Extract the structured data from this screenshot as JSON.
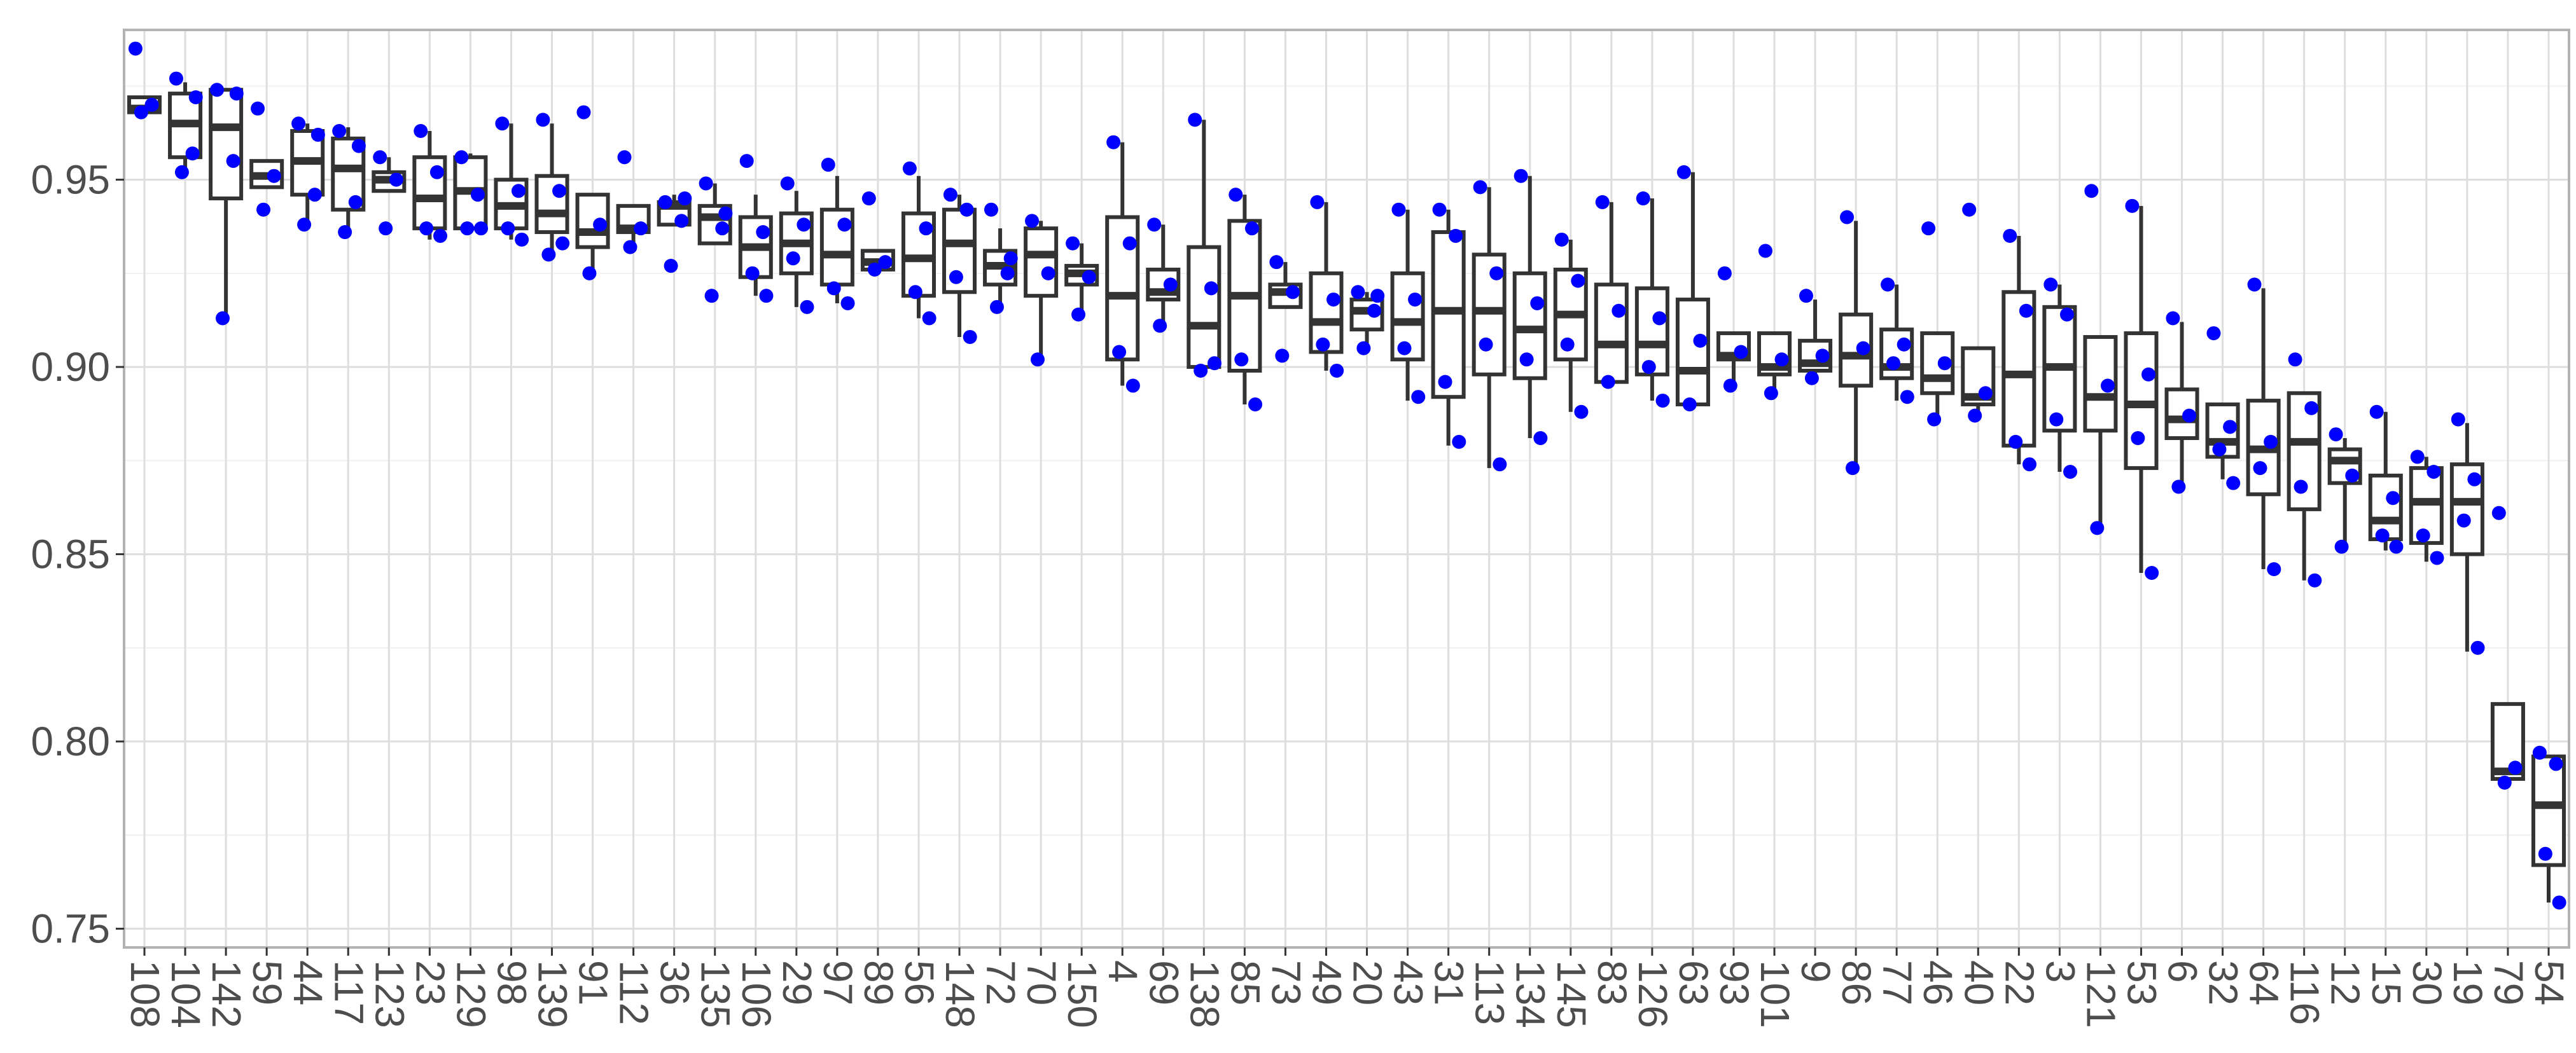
{
  "chart_data": {
    "type": "box",
    "title": "",
    "xlabel": "",
    "ylabel": "",
    "ylim": [
      0.745,
      0.99
    ],
    "y_ticks": [
      0.75,
      0.8,
      0.85,
      0.9,
      0.95
    ],
    "y_tick_labels": [
      "0.75",
      "0.80",
      "0.85",
      "0.90",
      "0.95"
    ],
    "grid": true,
    "box_color": "#333333",
    "point_color": "#0000ff",
    "categories": [
      "108",
      "104",
      "142",
      "59",
      "44",
      "117",
      "123",
      "23",
      "129",
      "98",
      "139",
      "91",
      "112",
      "36",
      "135",
      "106",
      "29",
      "97",
      "89",
      "56",
      "148",
      "72",
      "70",
      "150",
      "4",
      "69",
      "138",
      "85",
      "73",
      "49",
      "20",
      "43",
      "31",
      "113",
      "134",
      "145",
      "83",
      "126",
      "63",
      "93",
      "101",
      "9",
      "86",
      "77",
      "46",
      "40",
      "22",
      "3",
      "121",
      "53",
      "6",
      "32",
      "64",
      "116",
      "12",
      "15",
      "30",
      "19",
      "79",
      "54"
    ],
    "boxes": [
      {
        "q1": 0.968,
        "median": 0.969,
        "q3": 0.972,
        "lo": 0.968,
        "hi": 0.972,
        "points": [
          0.985,
          0.97,
          0.968
        ]
      },
      {
        "q1": 0.956,
        "median": 0.965,
        "q3": 0.973,
        "lo": 0.952,
        "hi": 0.976,
        "points": [
          0.977,
          0.957,
          0.952,
          0.972
        ]
      },
      {
        "q1": 0.945,
        "median": 0.964,
        "q3": 0.974,
        "lo": 0.913,
        "hi": 0.974,
        "points": [
          0.974,
          0.955,
          0.913,
          0.973
        ]
      },
      {
        "q1": 0.948,
        "median": 0.951,
        "q3": 0.955,
        "lo": 0.948,
        "hi": 0.955,
        "points": [
          0.969,
          0.951,
          0.942
        ]
      },
      {
        "q1": 0.946,
        "median": 0.955,
        "q3": 0.963,
        "lo": 0.938,
        "hi": 0.965,
        "points": [
          0.965,
          0.946,
          0.938,
          0.962
        ]
      },
      {
        "q1": 0.942,
        "median": 0.953,
        "q3": 0.961,
        "lo": 0.936,
        "hi": 0.964,
        "points": [
          0.963,
          0.944,
          0.936,
          0.959
        ]
      },
      {
        "q1": 0.947,
        "median": 0.95,
        "q3": 0.952,
        "lo": 0.947,
        "hi": 0.956,
        "points": [
          0.956,
          0.95,
          0.937
        ]
      },
      {
        "q1": 0.937,
        "median": 0.945,
        "q3": 0.956,
        "lo": 0.934,
        "hi": 0.963,
        "points": [
          0.963,
          0.952,
          0.937,
          0.935
        ]
      },
      {
        "q1": 0.937,
        "median": 0.947,
        "q3": 0.956,
        "lo": 0.937,
        "hi": 0.957,
        "points": [
          0.956,
          0.946,
          0.937,
          0.937
        ]
      },
      {
        "q1": 0.937,
        "median": 0.943,
        "q3": 0.95,
        "lo": 0.934,
        "hi": 0.965,
        "points": [
          0.965,
          0.947,
          0.937,
          0.934
        ]
      },
      {
        "q1": 0.936,
        "median": 0.941,
        "q3": 0.951,
        "lo": 0.93,
        "hi": 0.965,
        "points": [
          0.966,
          0.947,
          0.93,
          0.933
        ]
      },
      {
        "q1": 0.932,
        "median": 0.936,
        "q3": 0.946,
        "lo": 0.925,
        "hi": 0.946,
        "points": [
          0.968,
          0.938,
          0.925
        ]
      },
      {
        "q1": 0.936,
        "median": 0.937,
        "q3": 0.943,
        "lo": 0.932,
        "hi": 0.943,
        "points": [
          0.956,
          0.937,
          0.932
        ]
      },
      {
        "q1": 0.938,
        "median": 0.943,
        "q3": 0.944,
        "lo": 0.938,
        "hi": 0.946,
        "points": [
          0.944,
          0.939,
          0.927,
          0.945
        ]
      },
      {
        "q1": 0.933,
        "median": 0.94,
        "q3": 0.943,
        "lo": 0.933,
        "hi": 0.949,
        "points": [
          0.949,
          0.937,
          0.919,
          0.941
        ]
      },
      {
        "q1": 0.924,
        "median": 0.932,
        "q3": 0.94,
        "lo": 0.919,
        "hi": 0.946,
        "points": [
          0.955,
          0.936,
          0.925,
          0.919
        ]
      },
      {
        "q1": 0.925,
        "median": 0.933,
        "q3": 0.941,
        "lo": 0.916,
        "hi": 0.947,
        "points": [
          0.949,
          0.938,
          0.929,
          0.916
        ]
      },
      {
        "q1": 0.922,
        "median": 0.93,
        "q3": 0.942,
        "lo": 0.917,
        "hi": 0.951,
        "points": [
          0.954,
          0.938,
          0.921,
          0.917
        ]
      },
      {
        "q1": 0.926,
        "median": 0.928,
        "q3": 0.931,
        "lo": 0.926,
        "hi": 0.931,
        "points": [
          0.945,
          0.928,
          0.926
        ]
      },
      {
        "q1": 0.919,
        "median": 0.929,
        "q3": 0.941,
        "lo": 0.913,
        "hi": 0.951,
        "points": [
          0.953,
          0.937,
          0.92,
          0.913
        ]
      },
      {
        "q1": 0.92,
        "median": 0.933,
        "q3": 0.942,
        "lo": 0.908,
        "hi": 0.946,
        "points": [
          0.946,
          0.942,
          0.924,
          0.908
        ]
      },
      {
        "q1": 0.922,
        "median": 0.927,
        "q3": 0.931,
        "lo": 0.916,
        "hi": 0.937,
        "points": [
          0.942,
          0.925,
          0.916,
          0.929
        ]
      },
      {
        "q1": 0.919,
        "median": 0.93,
        "q3": 0.937,
        "lo": 0.902,
        "hi": 0.939,
        "points": [
          0.939,
          0.925,
          0.902
        ]
      },
      {
        "q1": 0.922,
        "median": 0.925,
        "q3": 0.927,
        "lo": 0.914,
        "hi": 0.933,
        "points": [
          0.933,
          0.924,
          0.914
        ]
      },
      {
        "q1": 0.902,
        "median": 0.919,
        "q3": 0.94,
        "lo": 0.895,
        "hi": 0.96,
        "points": [
          0.96,
          0.933,
          0.904,
          0.895
        ]
      },
      {
        "q1": 0.918,
        "median": 0.92,
        "q3": 0.926,
        "lo": 0.911,
        "hi": 0.938,
        "points": [
          0.938,
          0.922,
          0.911
        ]
      },
      {
        "q1": 0.9,
        "median": 0.911,
        "q3": 0.932,
        "lo": 0.898,
        "hi": 0.966,
        "points": [
          0.966,
          0.921,
          0.899,
          0.901
        ]
      },
      {
        "q1": 0.899,
        "median": 0.919,
        "q3": 0.939,
        "lo": 0.89,
        "hi": 0.946,
        "points": [
          0.946,
          0.937,
          0.902,
          0.89
        ]
      },
      {
        "q1": 0.916,
        "median": 0.92,
        "q3": 0.922,
        "lo": 0.916,
        "hi": 0.928,
        "points": [
          0.928,
          0.92,
          0.903
        ]
      },
      {
        "q1": 0.904,
        "median": 0.912,
        "q3": 0.925,
        "lo": 0.899,
        "hi": 0.944,
        "points": [
          0.944,
          0.918,
          0.906,
          0.899
        ]
      },
      {
        "q1": 0.91,
        "median": 0.915,
        "q3": 0.918,
        "lo": 0.904,
        "hi": 0.92,
        "points": [
          0.92,
          0.915,
          0.905,
          0.919
        ]
      },
      {
        "q1": 0.902,
        "median": 0.912,
        "q3": 0.925,
        "lo": 0.891,
        "hi": 0.942,
        "points": [
          0.942,
          0.918,
          0.905,
          0.892
        ]
      },
      {
        "q1": 0.892,
        "median": 0.915,
        "q3": 0.936,
        "lo": 0.879,
        "hi": 0.942,
        "points": [
          0.942,
          0.935,
          0.896,
          0.88
        ]
      },
      {
        "q1": 0.898,
        "median": 0.915,
        "q3": 0.93,
        "lo": 0.873,
        "hi": 0.948,
        "points": [
          0.948,
          0.925,
          0.906,
          0.874
        ]
      },
      {
        "q1": 0.897,
        "median": 0.91,
        "q3": 0.925,
        "lo": 0.881,
        "hi": 0.951,
        "points": [
          0.951,
          0.917,
          0.902,
          0.881
        ]
      },
      {
        "q1": 0.902,
        "median": 0.914,
        "q3": 0.926,
        "lo": 0.888,
        "hi": 0.934,
        "points": [
          0.934,
          0.923,
          0.906,
          0.888
        ]
      },
      {
        "q1": 0.896,
        "median": 0.906,
        "q3": 0.922,
        "lo": 0.895,
        "hi": 0.944,
        "points": [
          0.944,
          0.915,
          0.896
        ]
      },
      {
        "q1": 0.898,
        "median": 0.906,
        "q3": 0.921,
        "lo": 0.891,
        "hi": 0.945,
        "points": [
          0.945,
          0.913,
          0.9,
          0.891
        ]
      },
      {
        "q1": 0.89,
        "median": 0.899,
        "q3": 0.918,
        "lo": 0.889,
        "hi": 0.952,
        "points": [
          0.952,
          0.907,
          0.89
        ]
      },
      {
        "q1": 0.902,
        "median": 0.903,
        "q3": 0.909,
        "lo": 0.895,
        "hi": 0.909,
        "points": [
          0.925,
          0.904,
          0.895
        ]
      },
      {
        "q1": 0.898,
        "median": 0.9,
        "q3": 0.909,
        "lo": 0.892,
        "hi": 0.909,
        "points": [
          0.931,
          0.902,
          0.893
        ]
      },
      {
        "q1": 0.899,
        "median": 0.901,
        "q3": 0.907,
        "lo": 0.896,
        "hi": 0.918,
        "points": [
          0.919,
          0.903,
          0.897
        ]
      },
      {
        "q1": 0.895,
        "median": 0.903,
        "q3": 0.914,
        "lo": 0.873,
        "hi": 0.939,
        "points": [
          0.94,
          0.905,
          0.873
        ]
      },
      {
        "q1": 0.897,
        "median": 0.9,
        "q3": 0.91,
        "lo": 0.891,
        "hi": 0.922,
        "points": [
          0.922,
          0.906,
          0.901,
          0.892
        ]
      },
      {
        "q1": 0.893,
        "median": 0.897,
        "q3": 0.909,
        "lo": 0.886,
        "hi": 0.909,
        "points": [
          0.937,
          0.901,
          0.886
        ]
      },
      {
        "q1": 0.89,
        "median": 0.892,
        "q3": 0.905,
        "lo": 0.887,
        "hi": 0.905,
        "points": [
          0.942,
          0.893,
          0.887
        ]
      },
      {
        "q1": 0.879,
        "median": 0.898,
        "q3": 0.92,
        "lo": 0.874,
        "hi": 0.935,
        "points": [
          0.935,
          0.915,
          0.88,
          0.874
        ]
      },
      {
        "q1": 0.883,
        "median": 0.9,
        "q3": 0.916,
        "lo": 0.872,
        "hi": 0.922,
        "points": [
          0.922,
          0.914,
          0.886,
          0.872
        ]
      },
      {
        "q1": 0.883,
        "median": 0.892,
        "q3": 0.908,
        "lo": 0.857,
        "hi": 0.908,
        "points": [
          0.947,
          0.895,
          0.857
        ]
      },
      {
        "q1": 0.873,
        "median": 0.89,
        "q3": 0.909,
        "lo": 0.845,
        "hi": 0.943,
        "points": [
          0.943,
          0.898,
          0.881,
          0.845
        ]
      },
      {
        "q1": 0.881,
        "median": 0.886,
        "q3": 0.894,
        "lo": 0.868,
        "hi": 0.912,
        "points": [
          0.913,
          0.887,
          0.868
        ]
      },
      {
        "q1": 0.876,
        "median": 0.88,
        "q3": 0.89,
        "lo": 0.87,
        "hi": 0.89,
        "points": [
          0.909,
          0.884,
          0.878,
          0.869
        ]
      },
      {
        "q1": 0.866,
        "median": 0.878,
        "q3": 0.891,
        "lo": 0.846,
        "hi": 0.921,
        "points": [
          0.922,
          0.88,
          0.873,
          0.846
        ]
      },
      {
        "q1": 0.862,
        "median": 0.88,
        "q3": 0.893,
        "lo": 0.843,
        "hi": 0.893,
        "points": [
          0.902,
          0.889,
          0.868,
          0.843
        ]
      },
      {
        "q1": 0.869,
        "median": 0.875,
        "q3": 0.878,
        "lo": 0.852,
        "hi": 0.881,
        "points": [
          0.882,
          0.871,
          0.852
        ]
      },
      {
        "q1": 0.854,
        "median": 0.859,
        "q3": 0.871,
        "lo": 0.851,
        "hi": 0.888,
        "points": [
          0.888,
          0.865,
          0.855,
          0.852
        ]
      },
      {
        "q1": 0.853,
        "median": 0.864,
        "q3": 0.873,
        "lo": 0.848,
        "hi": 0.876,
        "points": [
          0.876,
          0.872,
          0.855,
          0.849
        ]
      },
      {
        "q1": 0.85,
        "median": 0.864,
        "q3": 0.874,
        "lo": 0.824,
        "hi": 0.885,
        "points": [
          0.886,
          0.87,
          0.859,
          0.825
        ]
      },
      {
        "q1": 0.79,
        "median": 0.792,
        "q3": 0.81,
        "lo": 0.79,
        "hi": 0.81,
        "points": [
          0.861,
          0.793,
          0.789
        ]
      },
      {
        "q1": 0.767,
        "median": 0.783,
        "q3": 0.796,
        "lo": 0.757,
        "hi": 0.796,
        "points": [
          0.797,
          0.794,
          0.77,
          0.757
        ]
      }
    ]
  }
}
